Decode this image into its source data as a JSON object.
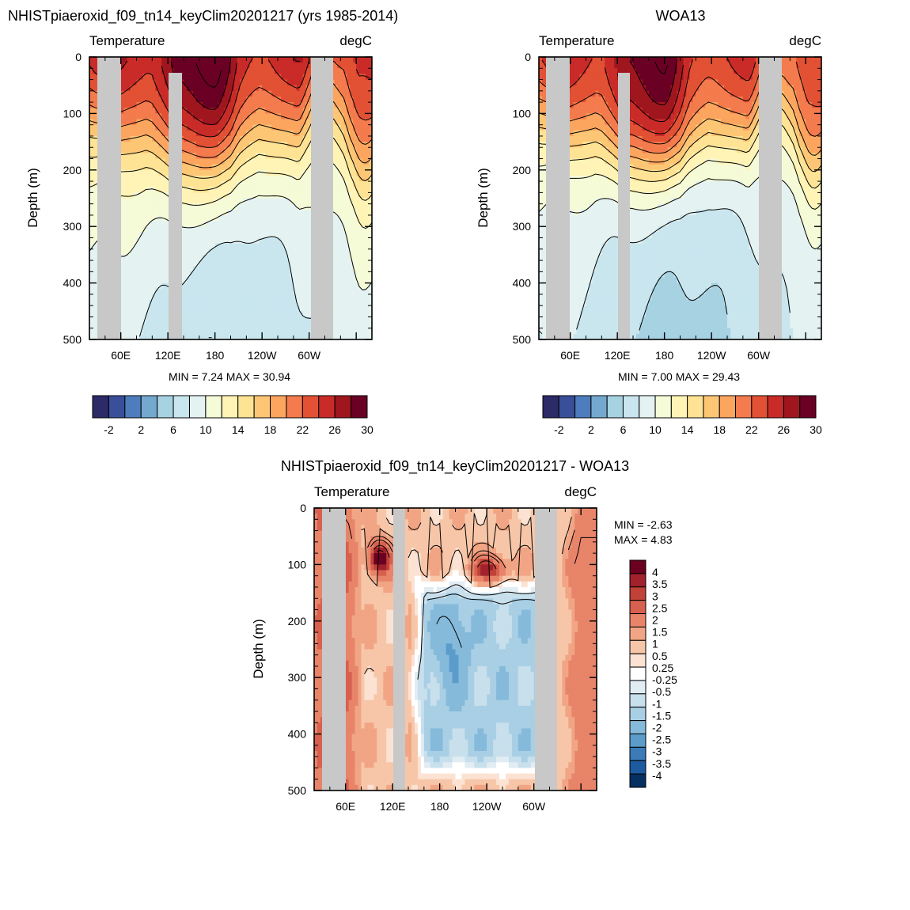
{
  "colors": {
    "land": "#c8c8c8",
    "temp_palette": [
      "#2c2a67",
      "#3a4f9a",
      "#4d7dbd",
      "#74a9cf",
      "#a6d2e2",
      "#c9e6ef",
      "#e4f3f1",
      "#f5fad7",
      "#fff4b6",
      "#fee394",
      "#fdc675",
      "#fca55f",
      "#f47b4d",
      "#e25134",
      "#c92b28",
      "#a0161f",
      "#6b0025"
    ],
    "diff_palette": [
      "#053061",
      "#1e5aa0",
      "#3a7bb8",
      "#5b9ccb",
      "#86bada",
      "#a9cfe5",
      "#c8dfec",
      "#e1ecf3",
      "#ffffff",
      "#fbe2d3",
      "#f7c6a8",
      "#f1a584",
      "#e78469",
      "#d7604e",
      "#c04238",
      "#a1212c",
      "#6b0020"
    ]
  },
  "chart_data": [
    {
      "type": "contour",
      "id": "model",
      "title": "NHISTpiaeroxid_f09_tn14_keyClim20201217 (yrs 1985-2014)",
      "left_label": "Temperature",
      "right_label": "degC",
      "ylabel": "Depth (m)",
      "yticks": [
        "0",
        "100",
        "200",
        "300",
        "400",
        "500"
      ],
      "xticks": [
        "60E",
        "120E",
        "180",
        "120W",
        "60W"
      ],
      "min_max_text": "MIN =   7.24  MAX =  30.94",
      "colorbar_labels": [
        "-2",
        "2",
        "6",
        "10",
        "14",
        "18",
        "22",
        "26",
        "30"
      ],
      "ylim": [
        0,
        500
      ],
      "levels": [
        -4,
        -2,
        0,
        2,
        4,
        6,
        8,
        10,
        12,
        14,
        16,
        18,
        20,
        22,
        24,
        26,
        28,
        30,
        32
      ]
    },
    {
      "type": "contour",
      "id": "obs",
      "title": "WOA13",
      "left_label": "Temperature",
      "right_label": "degC",
      "ylabel": "Depth (m)",
      "yticks": [
        "0",
        "100",
        "200",
        "300",
        "400",
        "500"
      ],
      "xticks": [
        "60E",
        "120E",
        "180",
        "120W",
        "60W"
      ],
      "min_max_text": "MIN =   7.00  MAX =  29.43",
      "colorbar_labels": [
        "-2",
        "2",
        "6",
        "10",
        "14",
        "18",
        "22",
        "26",
        "30"
      ],
      "ylim": [
        0,
        500
      ]
    },
    {
      "type": "contour",
      "id": "diff",
      "title": "NHISTpiaeroxid_f09_tn14_keyClim20201217 - WOA13",
      "left_label": "Temperature",
      "right_label": "degC",
      "ylabel": "Depth (m)",
      "yticks": [
        "0",
        "100",
        "200",
        "300",
        "400",
        "500"
      ],
      "xticks": [
        "60E",
        "120E",
        "180",
        "120W",
        "60W"
      ],
      "min_text": "MIN =  -2.63",
      "max_text": "MAX =   4.83",
      "colorbar_labels": [
        "4",
        "3.5",
        "3",
        "2.5",
        "2",
        "1.5",
        "1",
        "0.5",
        "0.25",
        "-0.25",
        "-0.5",
        "-1",
        "-1.5",
        "-2",
        "-2.5",
        "-3",
        "-3.5",
        "-4"
      ],
      "ylim": [
        0,
        500
      ]
    }
  ]
}
